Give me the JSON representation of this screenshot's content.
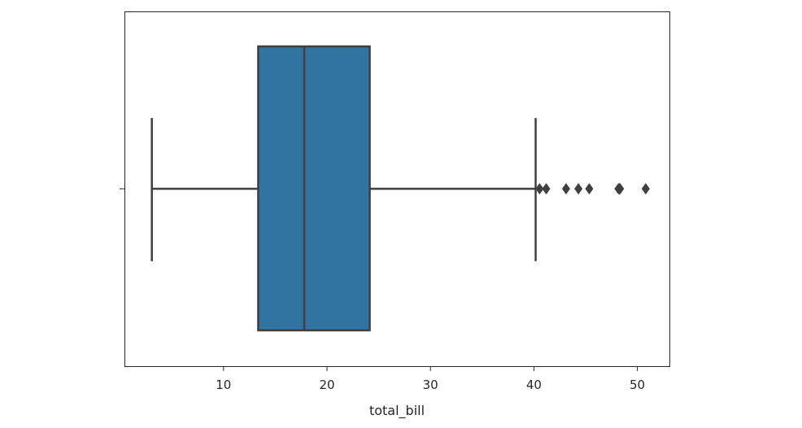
{
  "chart_data": {
    "type": "box",
    "xlabel": "total_bill",
    "ylabel": "",
    "title": "",
    "xlim": [
      0.5,
      53.1
    ],
    "x_ticks": [
      10,
      20,
      30,
      40,
      50
    ],
    "x_tick_labels": [
      "10",
      "20",
      "30",
      "40",
      "50"
    ],
    "grid": false,
    "box": {
      "whisker_low": 3.07,
      "q1": 13.35,
      "median": 17.8,
      "q3": 24.13,
      "whisker_high": 40.17,
      "outliers": [
        40.55,
        41.19,
        43.11,
        44.3,
        45.35,
        48.17,
        48.27,
        48.33,
        50.81
      ]
    },
    "colors": {
      "box_fill": "#3274a1",
      "lines": "#3f3f3f",
      "axes": "#262626"
    }
  }
}
